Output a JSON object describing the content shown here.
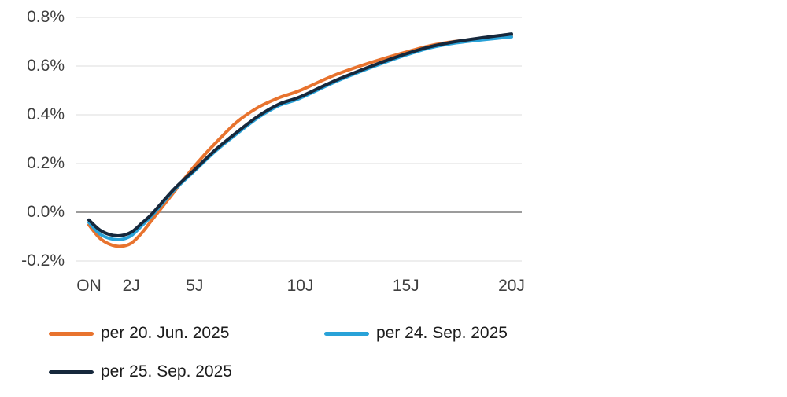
{
  "chart_data": {
    "type": "line",
    "title": "",
    "xlabel": "",
    "ylabel": "",
    "unit": "%",
    "ylim": [
      -0.2,
      0.8
    ],
    "grid": true,
    "zero_line": true,
    "legend_position": "bottom",
    "x_ticks": [
      {
        "label": "ON",
        "t": 0
      },
      {
        "label": "2J",
        "t": 2
      },
      {
        "label": "5J",
        "t": 5
      },
      {
        "label": "10J",
        "t": 10
      },
      {
        "label": "15J",
        "t": 15
      },
      {
        "label": "20J",
        "t": 20
      }
    ],
    "y_ticks": [
      {
        "label": "0.8%",
        "value": 0.8
      },
      {
        "label": "0.6%",
        "value": 0.6
      },
      {
        "label": "0.4%",
        "value": 0.4
      },
      {
        "label": "0.2%",
        "value": 0.2
      },
      {
        "label": "0.0%",
        "value": 0.0
      },
      {
        "label": "-0.2%",
        "value": -0.2
      }
    ],
    "x_years": [
      0,
      0.5,
      1,
      1.5,
      2,
      2.5,
      3,
      4,
      5,
      6,
      7,
      8,
      9,
      10,
      12,
      15,
      17,
      20
    ],
    "series": [
      {
        "name": "per 20. Jun. 2025",
        "color": "#e8732e",
        "values": [
          -0.052,
          -0.105,
          -0.132,
          -0.14,
          -0.127,
          -0.085,
          -0.03,
          0.08,
          0.19,
          0.285,
          0.37,
          0.43,
          0.47,
          0.5,
          0.575,
          0.657,
          0.697,
          0.725
        ]
      },
      {
        "name": "per 24. Sep. 2025",
        "color": "#29a2d8",
        "values": [
          -0.042,
          -0.088,
          -0.108,
          -0.112,
          -0.096,
          -0.055,
          -0.012,
          0.088,
          0.17,
          0.252,
          0.322,
          0.388,
          0.438,
          0.468,
          0.548,
          0.645,
          0.69,
          0.72
        ]
      },
      {
        "name": "per 25. Sep. 2025",
        "color": "#16283c",
        "values": [
          -0.032,
          -0.072,
          -0.092,
          -0.096,
          -0.082,
          -0.045,
          -0.005,
          0.093,
          0.175,
          0.257,
          0.328,
          0.394,
          0.444,
          0.474,
          0.553,
          0.65,
          0.695,
          0.732
        ]
      }
    ],
    "colors": {
      "background": "#ffffff",
      "gridline": "#e8e8e8",
      "zero_line": "#9c9c9c",
      "tick_text": "#3f3f3f",
      "legend_text": "#1c1c1c"
    }
  }
}
